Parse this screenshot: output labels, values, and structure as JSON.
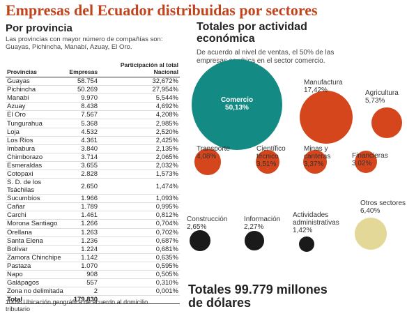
{
  "title": "Empresas del Ecuador distribuidas por sectores",
  "left": {
    "heading": "Por provincia",
    "intro": "Las provincias con mayor número de compañías son: Guayas, Pichincha, Manabí, Azuay, El Oro.",
    "columns": [
      "Provincias",
      "Empresas",
      "Participación al total Nacional"
    ],
    "rows": [
      [
        "Guayas",
        "58.754",
        "32,672%"
      ],
      [
        "Pichincha",
        "50.269",
        "27,954%"
      ],
      [
        "Manabí",
        "9.970",
        "5,544%"
      ],
      [
        "Azuay",
        "8.438",
        "4,692%"
      ],
      [
        "El Oro",
        "7.567",
        "4,208%"
      ],
      [
        "Tungurahua",
        "5.368",
        "2,985%"
      ],
      [
        "Loja",
        "4.532",
        "2,520%"
      ],
      [
        "Los Ríos",
        "4.361",
        "2,425%"
      ],
      [
        "Imbabura",
        "3.840",
        "2,135%"
      ],
      [
        "Chimborazo",
        "3.714",
        "2,065%"
      ],
      [
        "Esmeraldas",
        "3.655",
        "2,032%"
      ],
      [
        "Cotopaxi",
        "2.828",
        "1,573%"
      ],
      [
        "S. D. de los Tsáchilas",
        "2.650",
        "1,474%"
      ],
      [
        "Sucumbíos",
        "1.966",
        "1,093%"
      ],
      [
        "Cañar",
        "1.789",
        "0,995%"
      ],
      [
        "Carchi",
        "1.461",
        "0,812%"
      ],
      [
        "Morona Santiago",
        "1.266",
        "0,704%"
      ],
      [
        "Orellana",
        "1.263",
        "0,702%"
      ],
      [
        "Santa Elena",
        "1.236",
        "0,687%"
      ],
      [
        "Bolívar",
        "1.224",
        "0,681%"
      ],
      [
        "Zamora Chinchipe",
        "1.142",
        "0,635%"
      ],
      [
        "Pastaza",
        "1.070",
        "0,595%"
      ],
      [
        "Napo",
        "908",
        "0,505%"
      ],
      [
        "Galápagos",
        "557",
        "0,310%"
      ],
      [
        "Zona no delimitada",
        "2",
        "0,001%"
      ]
    ],
    "total": [
      "Total",
      "179.830"
    ],
    "footnote": "100% Ubicación geográfica de acuerdo al domicilio tributario"
  },
  "right": {
    "heading": "Totales por actividad económica",
    "intro": "De acuerdo al nivel de ventas, el 50% de las empresas se ubica en el sector comercio.",
    "sectors": [
      {
        "name": "Comercio",
        "value": 50.13,
        "label": "50,13%",
        "color": "#138b84"
      },
      {
        "name": "Manufactura",
        "value": 17.42,
        "label": "17,42%",
        "color": "#d5461d"
      },
      {
        "name": "Agricultura",
        "value": 5.73,
        "label": "5,73%",
        "color": "#d5461d"
      },
      {
        "name": "Transporte",
        "value": 4.08,
        "label": "4,08%",
        "color": "#d5461d"
      },
      {
        "name": "Científico técnico",
        "value": 3.51,
        "label": "3,51%",
        "color": "#d5461d"
      },
      {
        "name": "Minas y canteras",
        "value": 3.37,
        "label": "3,37%",
        "color": "#d5461d"
      },
      {
        "name": "Financieras",
        "value": 3.02,
        "label": "3,02%",
        "color": "#d5461d"
      },
      {
        "name": "Construcción",
        "value": 2.65,
        "label": "2,65%",
        "color": "#1a1a1a"
      },
      {
        "name": "Información",
        "value": 2.27,
        "label": "2,27%",
        "color": "#1a1a1a"
      },
      {
        "name": "Actividades administrativas",
        "value": 1.42,
        "label": "1,42%",
        "color": "#1a1a1a"
      },
      {
        "name": "Otros sectores",
        "value": 6.4,
        "label": "6,40%",
        "color": "#e4d898"
      }
    ],
    "total": "Totales 99.779 millones de dólares"
  }
}
